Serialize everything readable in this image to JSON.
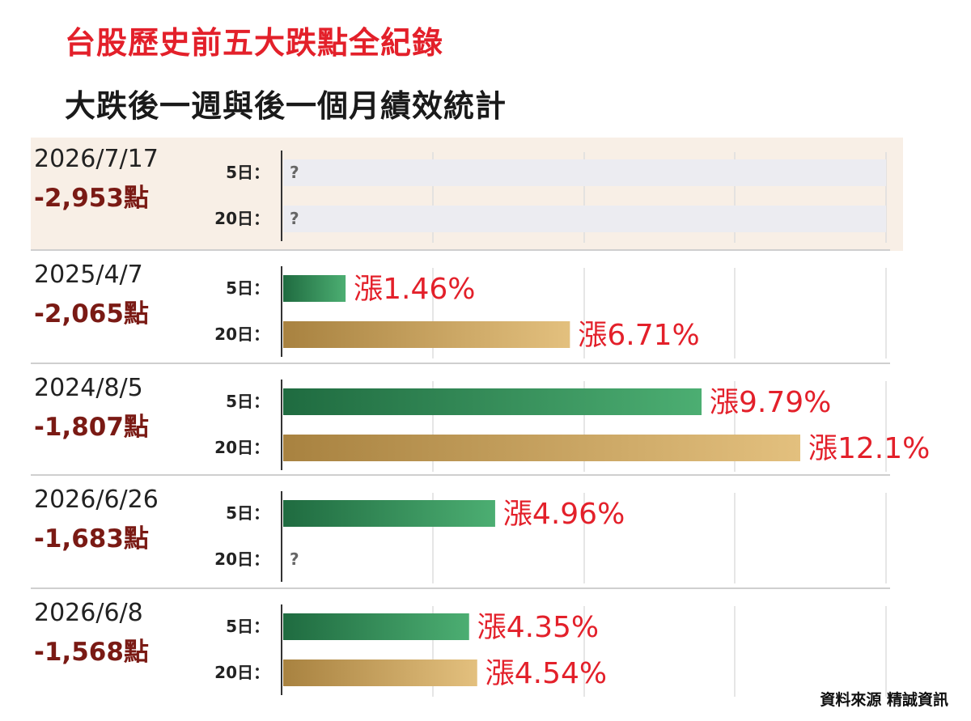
{
  "title": "台股歷史前五大跌點全紀錄",
  "subtitle": "大跌後一週與後一個月績效統計",
  "source": "資料來源 精誠資訊",
  "row_labels": [
    "5日：",
    "20日："
  ],
  "missing_marker": "?",
  "value_prefix": "漲",
  "colors": {
    "title": "#e3202a",
    "value_label": "#e3202a",
    "points_label": "#7a1a14",
    "green_bar": "#2f8a55",
    "gold_bar": "#c9a258",
    "highlight_bg": "#f8efe6"
  },
  "chart_data": {
    "type": "bar",
    "orientation": "horizontal",
    "xlim": [
      0,
      12.1
    ],
    "grid": true,
    "groups": [
      {
        "date": "2026/7/17",
        "points": "-2,953點",
        "highlight": true,
        "values": [
          {
            "row": "5日：",
            "value": null,
            "label": ""
          },
          {
            "row": "20日：",
            "value": null,
            "label": ""
          }
        ]
      },
      {
        "date": "2025/4/7",
        "points": "-2,065點",
        "highlight": false,
        "values": [
          {
            "row": "5日：",
            "value": 1.46,
            "label": "漲1.46%"
          },
          {
            "row": "20日：",
            "value": 6.71,
            "label": "漲6.71%"
          }
        ]
      },
      {
        "date": "2024/8/5",
        "points": "-1,807點",
        "highlight": false,
        "values": [
          {
            "row": "5日：",
            "value": 9.79,
            "label": "漲9.79%"
          },
          {
            "row": "20日：",
            "value": 12.1,
            "label": "漲12.1%"
          }
        ]
      },
      {
        "date": "2026/6/26",
        "points": "-1,683點",
        "highlight": false,
        "values": [
          {
            "row": "5日：",
            "value": 4.96,
            "label": "漲4.96%"
          },
          {
            "row": "20日：",
            "value": null,
            "label": ""
          }
        ]
      },
      {
        "date": "2026/6/8",
        "points": "-1,568點",
        "highlight": false,
        "values": [
          {
            "row": "5日：",
            "value": 4.35,
            "label": "漲4.35%"
          },
          {
            "row": "20日：",
            "value": 4.54,
            "label": "漲4.54%"
          }
        ]
      }
    ]
  }
}
